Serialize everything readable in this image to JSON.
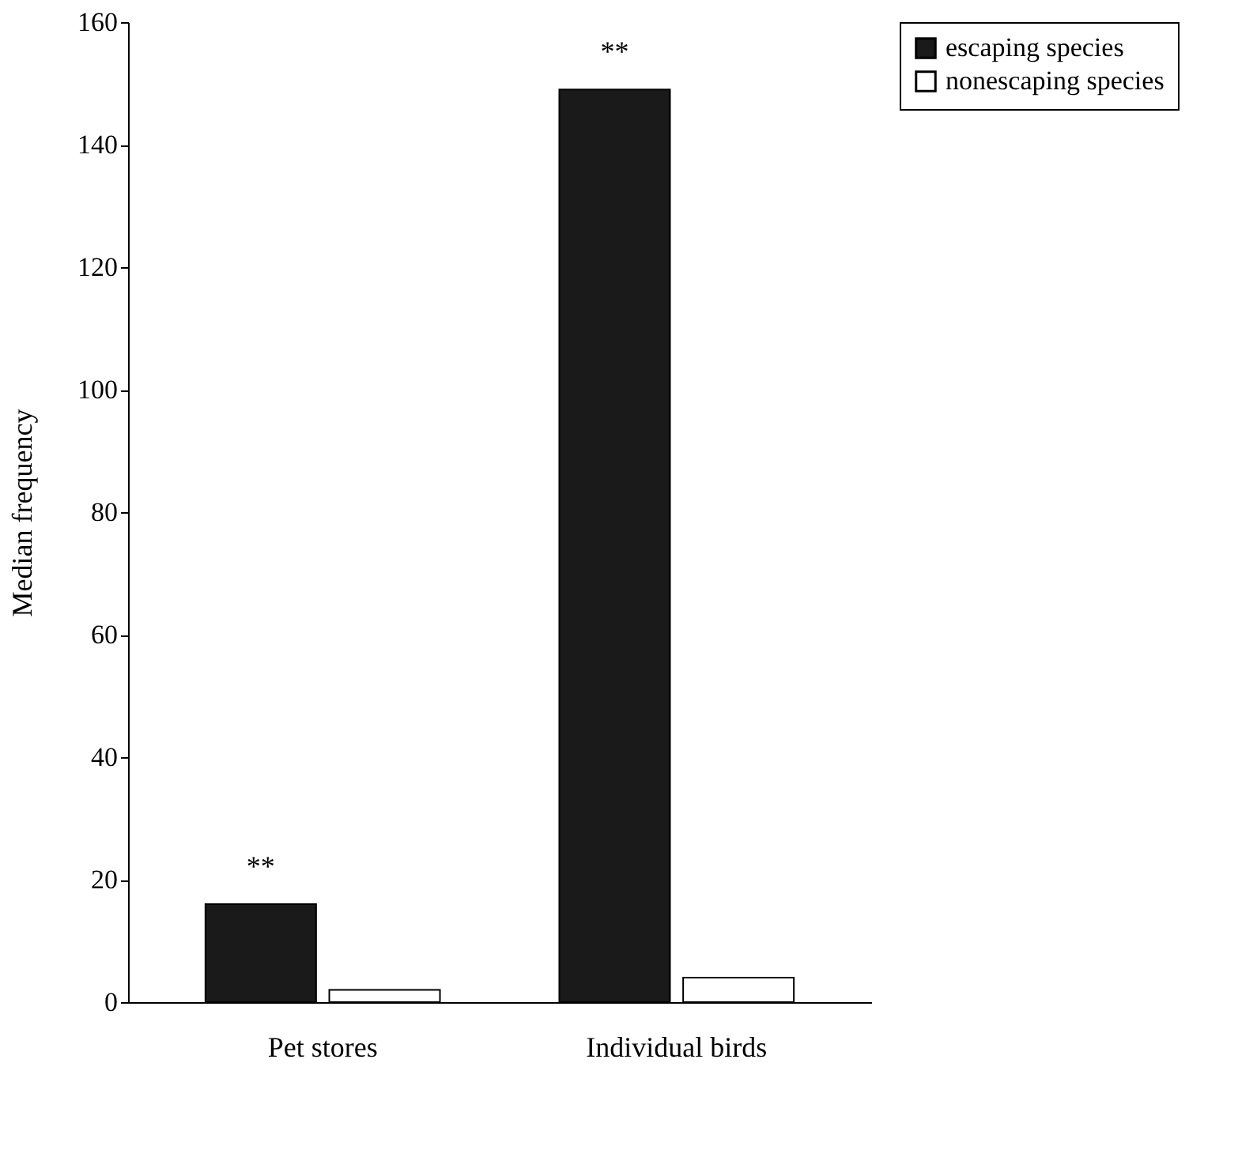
{
  "chart_data": {
    "type": "bar",
    "ylabel": "Median frequency",
    "categories": [
      "Pet stores",
      "Individual birds"
    ],
    "series": [
      {
        "name": "escaping species",
        "color": "#1a1a1a",
        "values": [
          16,
          149
        ]
      },
      {
        "name": "nonescaping species",
        "color": "#ffffff",
        "values": [
          2,
          4
        ]
      }
    ],
    "ylim": [
      0,
      160
    ],
    "yticks": [
      0,
      20,
      40,
      60,
      80,
      100,
      120,
      140,
      160
    ],
    "grid": false,
    "legend": "right",
    "annotations": [
      {
        "text": "**",
        "x": "Pet stores",
        "y": 16
      },
      {
        "text": "**",
        "x": "Individual birds",
        "y": 149
      }
    ]
  }
}
